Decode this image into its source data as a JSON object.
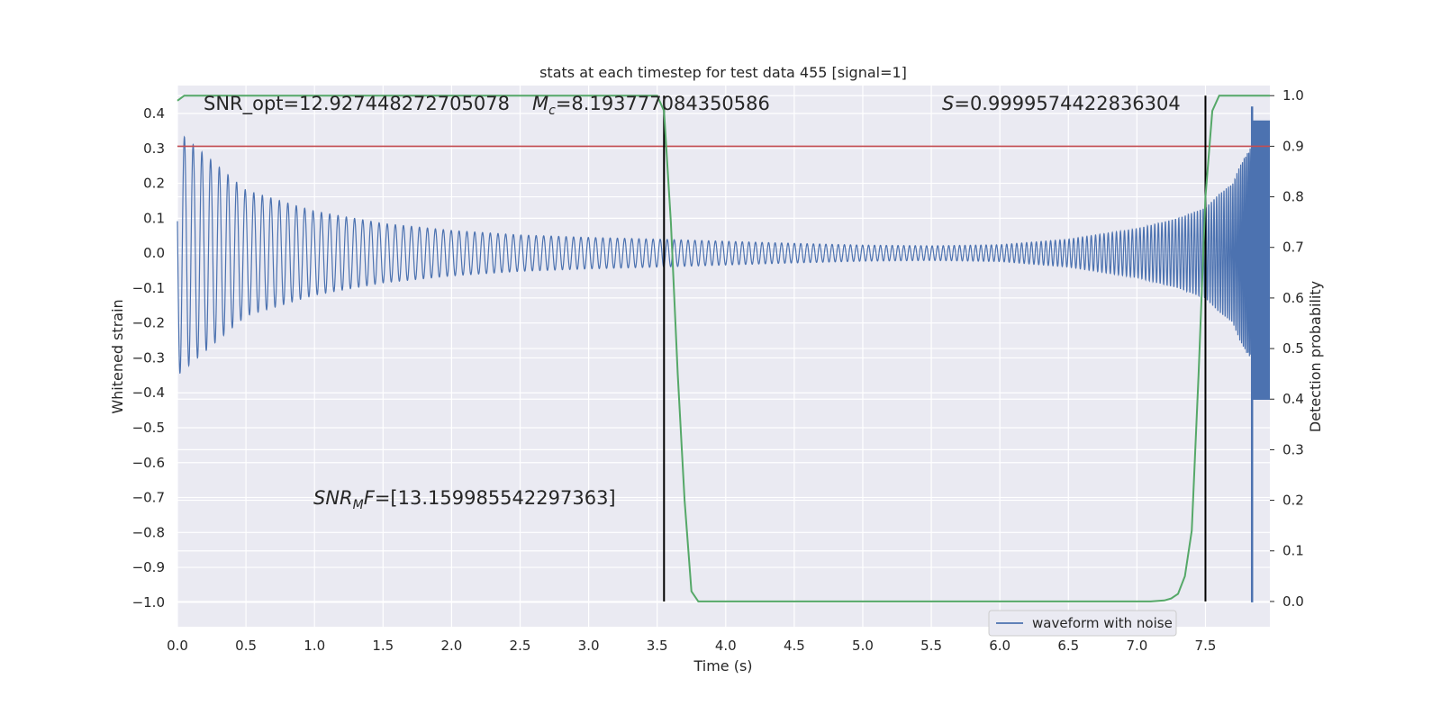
{
  "chart_data": {
    "type": "line",
    "title": "stats at each timestep for test data 455 [signal=1]",
    "xlabel": "Time (s)",
    "ylabel_left": "Whitened strain",
    "ylabel_right": "Detection probability",
    "xlim": [
      0.0,
      7.97
    ],
    "ylim_left": [
      -1.07,
      0.48
    ],
    "ylim_right": [
      -0.05,
      1.02
    ],
    "grid": true,
    "background": "#eaeaf2",
    "x_ticks": [
      "0.0",
      "0.5",
      "1.0",
      "1.5",
      "2.0",
      "2.5",
      "3.0",
      "3.5",
      "4.0",
      "4.5",
      "5.0",
      "5.5",
      "6.0",
      "6.5",
      "7.0",
      "7.5"
    ],
    "y_left_ticks": [
      "0.4",
      "0.3",
      "0.2",
      "0.1",
      "0.0",
      "−0.1",
      "−0.2",
      "−0.3",
      "−0.4",
      "−0.5",
      "−0.6",
      "−0.7",
      "−0.8",
      "−0.9",
      "−1.0"
    ],
    "y_right_ticks": [
      "1.0",
      "0.9",
      "0.8",
      "0.7",
      "0.6",
      "0.5",
      "0.4",
      "0.3",
      "0.2",
      "0.1",
      "0.0"
    ],
    "annotations": {
      "snr_opt": "SNR_opt=12.927448272705078",
      "mc_symbol": "M",
      "mc_sub": "c",
      "mc_value": "=8.193777084350586",
      "s_symbol": "S",
      "s_value": "=0.9999574422836304",
      "snr_mf_symbol": "SNR",
      "snr_mf_sub": "M",
      "snr_mf_f": "F",
      "snr_mf_value": "=[13.159985542297363]"
    },
    "legend": {
      "label": "waveform with noise",
      "position": "lower right"
    },
    "series": [
      {
        "name": "waveform with noise",
        "axis": "left",
        "color": "#4c72b0",
        "kind": "chirp-waveform",
        "x_end": 7.84,
        "envelope": {
          "t": [
            0.0,
            0.5,
            1.0,
            1.5,
            2.0,
            2.5,
            3.0,
            3.5,
            4.0,
            4.5,
            5.0,
            5.5,
            6.0,
            6.5,
            7.0,
            7.3,
            7.5,
            7.6,
            7.7,
            7.75,
            7.82,
            7.84
          ],
          "amp": [
            0.35,
            0.18,
            0.12,
            0.085,
            0.065,
            0.052,
            0.045,
            0.04,
            0.034,
            0.028,
            0.023,
            0.021,
            0.024,
            0.04,
            0.07,
            0.1,
            0.13,
            0.17,
            0.2,
            0.25,
            0.3,
            0.3
          ]
        },
        "final_spike": {
          "x": 7.84,
          "y_min": -1.0,
          "y_max": 0.42,
          "band_x_end": 7.97,
          "band_min": -0.42,
          "band_max": 0.38
        }
      },
      {
        "name": "",
        "axis": "right",
        "color": "#55a868",
        "x": [
          0.0,
          0.05,
          3.45,
          3.5,
          3.55,
          3.6,
          3.65,
          3.7,
          3.75,
          3.8,
          4.0,
          6.8,
          7.0,
          7.1,
          7.2,
          7.25,
          7.3,
          7.35,
          7.4,
          7.45,
          7.5,
          7.55,
          7.6,
          7.65,
          7.97
        ],
        "y": [
          0.99,
          1.0,
          1.0,
          1.0,
          0.97,
          0.75,
          0.45,
          0.2,
          0.02,
          0.0,
          0.0,
          0.0,
          0.0,
          0.0,
          0.002,
          0.006,
          0.015,
          0.05,
          0.14,
          0.45,
          0.8,
          0.97,
          1.0,
          1.0,
          1.0
        ]
      }
    ],
    "horizontal_line": {
      "axis": "right",
      "y": 0.9,
      "color": "#c44e52"
    },
    "vertical_lines": [
      {
        "x": 3.55,
        "y_max_right": 1.0,
        "color": "#000000"
      },
      {
        "x": 7.5,
        "y_max_right": 1.0,
        "color": "#000000"
      }
    ]
  }
}
